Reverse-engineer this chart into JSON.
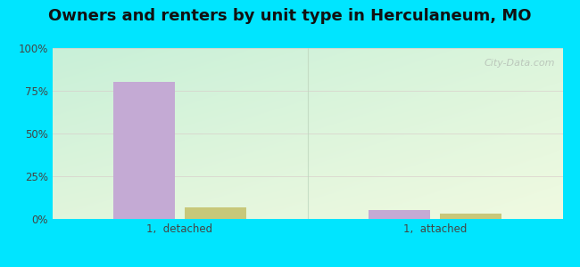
{
  "title": "Owners and renters by unit type in Herculaneum, MO",
  "categories": [
    "1,  detached",
    "1,  attached"
  ],
  "owner_values": [
    80,
    5
  ],
  "renter_values": [
    7,
    3
  ],
  "owner_color": "#c4aad4",
  "renter_color": "#c8c87a",
  "bar_width": 0.12,
  "ylim": [
    0,
    100
  ],
  "yticks": [
    0,
    25,
    50,
    75,
    100
  ],
  "ytick_labels": [
    "0%",
    "25%",
    "50%",
    "75%",
    "100%"
  ],
  "bg_corner_tl": "#c8edd8",
  "bg_corner_tr": "#e8f5e0",
  "bg_corner_bl": "#e0f0d8",
  "bg_corner_br": "#f0f5e0",
  "figure_bg": "#00e5ff",
  "watermark": "City-Data.com",
  "title_fontsize": 13,
  "tick_fontsize": 8.5,
  "legend_fontsize": 9.5,
  "grid_color": "#e0e8d8",
  "separator_color": "#c0d8c0"
}
